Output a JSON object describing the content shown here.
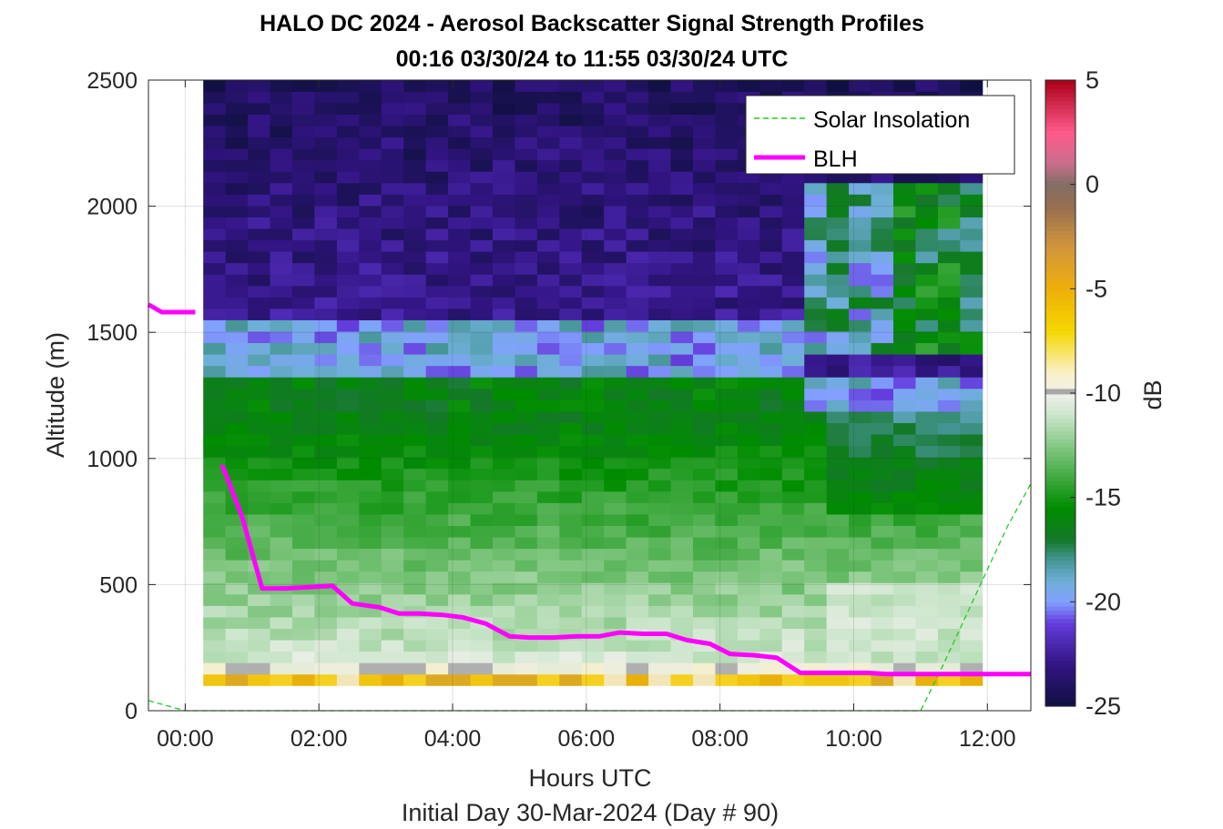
{
  "chart_data": {
    "type": "heatmap",
    "title": "HALO DC 2024 - Aerosol Backscatter Signal Strength Profiles",
    "subtitle": "00:16 03/30/24 to 11:55 03/30/24  UTC",
    "xlabel": "Hours UTC",
    "xlabel2": "Initial Day 30-Mar-2024 (Day # 90)",
    "ylabel": "Altitude (m)",
    "colorbar_label": "dB",
    "x_ticks": [
      "00:00",
      "02:00",
      "04:00",
      "06:00",
      "08:00",
      "10:00",
      "12:00"
    ],
    "x_tick_hours": [
      0,
      2,
      4,
      6,
      8,
      10,
      12
    ],
    "xlim": [
      -0.55,
      12.65
    ],
    "y_ticks": [
      "0",
      "500",
      "1000",
      "1500",
      "2000",
      "2500"
    ],
    "y_tick_values": [
      0,
      500,
      1000,
      1500,
      2000,
      2500
    ],
    "ylim": [
      0,
      2500
    ],
    "colorbar_ticks": [
      "5",
      "0",
      "-5",
      "-10",
      "-15",
      "-20",
      "-25"
    ],
    "colorbar_tick_values": [
      5,
      0,
      -5,
      -10,
      -15,
      -20,
      -25
    ],
    "clim": [
      -25,
      5
    ],
    "grid": true,
    "legend_position": "top-right",
    "heatmap": {
      "x_start_hours": 0.27,
      "cols": 35,
      "col_width_hours": 0.333,
      "y_start_m": 100,
      "row_height_m": 45.3,
      "rows": 53
    },
    "series": [
      {
        "name": "Solar Insolation",
        "style": "dashed",
        "color": "#22cc22",
        "x": [
          -0.55,
          0.0,
          0.5,
          1.0,
          2.0,
          4.0,
          6.0,
          8.0,
          10.0,
          11.0,
          11.3,
          11.6,
          12.0,
          12.3,
          12.65
        ],
        "y": [
          40,
          0,
          0,
          0,
          0,
          0,
          0,
          0,
          0,
          0,
          160,
          330,
          560,
          730,
          900
        ]
      },
      {
        "name": "BLH",
        "style": "solid",
        "color": "#ff00ff",
        "x": [
          -0.55,
          -0.35,
          0.15,
          null,
          0.55,
          0.85,
          1.15,
          1.5,
          1.85,
          2.2,
          2.5,
          2.9,
          3.2,
          3.5,
          3.85,
          4.15,
          4.5,
          4.85,
          5.15,
          5.5,
          5.85,
          6.2,
          6.5,
          6.85,
          7.2,
          7.5,
          7.85,
          8.15,
          8.5,
          8.85,
          9.2,
          9.5,
          9.85,
          10.2,
          10.5,
          10.85,
          11.2,
          11.5,
          11.85,
          12.2,
          12.65
        ],
        "y": [
          1610,
          1580,
          1580,
          null,
          975,
          770,
          485,
          485,
          490,
          495,
          425,
          410,
          385,
          385,
          380,
          370,
          345,
          295,
          290,
          290,
          295,
          295,
          310,
          305,
          305,
          280,
          265,
          225,
          220,
          210,
          150,
          150,
          150,
          150,
          145,
          145,
          145,
          145,
          145,
          145,
          145
        ]
      }
    ]
  }
}
